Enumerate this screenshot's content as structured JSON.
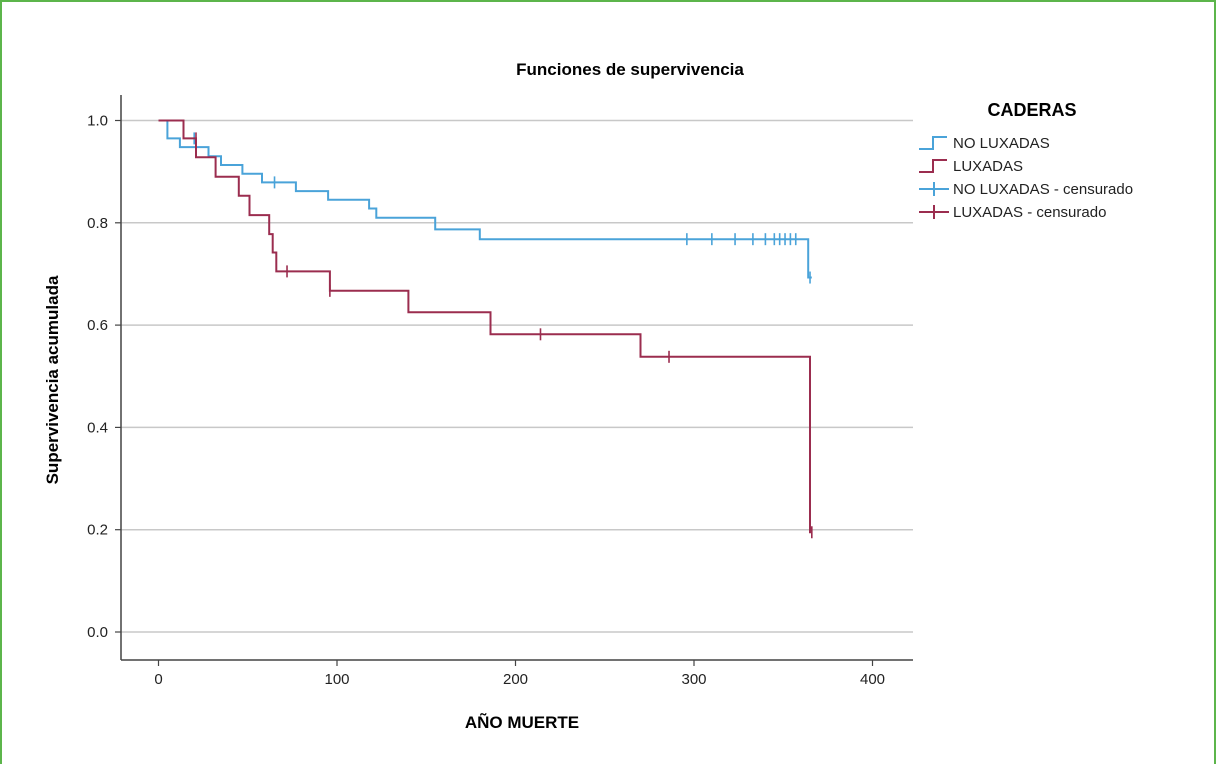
{
  "chart_data": {
    "type": "line",
    "title": "Funciones de supervivencia",
    "xlabel": "AÑO MUERTE",
    "ylabel": "Supervivencia acumulada",
    "xlim": [
      -20,
      420
    ],
    "ylim": [
      -0.05,
      1.05
    ],
    "xticks": [
      0,
      100,
      200,
      300,
      400
    ],
    "yticks": [
      0.0,
      0.2,
      0.4,
      0.6,
      0.8,
      1.0
    ],
    "xtick_labels": [
      "0",
      "100",
      "200",
      "300",
      "400"
    ],
    "ytick_labels": [
      "0.0",
      "0.2",
      "0.4",
      "0.6",
      "0.8",
      "1.0"
    ],
    "grid": "horizontal",
    "legend": {
      "title": "CADERAS",
      "position": "top-right",
      "entries": [
        "NO LUXADAS",
        "LUXADAS",
        "NO LUXADAS - censurado",
        "LUXADAS - censurado"
      ]
    },
    "series": [
      {
        "name": "NO LUXADAS",
        "color": "#4aa3d9",
        "step": [
          [
            0,
            1.0
          ],
          [
            5,
            0.965
          ],
          [
            12,
            0.948
          ],
          [
            20,
            0.948
          ],
          [
            28,
            0.93
          ],
          [
            35,
            0.913
          ],
          [
            47,
            0.896
          ],
          [
            58,
            0.879
          ],
          [
            68,
            0.879
          ],
          [
            77,
            0.862
          ],
          [
            95,
            0.845
          ],
          [
            107,
            0.845
          ],
          [
            118,
            0.828
          ],
          [
            122,
            0.81
          ],
          [
            152,
            0.81
          ],
          [
            155,
            0.787
          ],
          [
            172,
            0.787
          ],
          [
            180,
            0.768
          ],
          [
            362,
            0.768
          ],
          [
            364,
            0.693
          ],
          [
            366,
            0.693
          ]
        ],
        "censored": [
          [
            20,
            0.965
          ],
          [
            65,
            0.879
          ],
          [
            296,
            0.768
          ],
          [
            310,
            0.768
          ],
          [
            323,
            0.768
          ],
          [
            333,
            0.768
          ],
          [
            340,
            0.768
          ],
          [
            345,
            0.768
          ],
          [
            348,
            0.768
          ],
          [
            351,
            0.768
          ],
          [
            354,
            0.768
          ],
          [
            357,
            0.768
          ],
          [
            365,
            0.693
          ]
        ]
      },
      {
        "name": "LUXADAS",
        "color": "#9b2d4f",
        "step": [
          [
            0,
            1.0
          ],
          [
            12,
            1.0
          ],
          [
            14,
            0.965
          ],
          [
            20,
            0.965
          ],
          [
            21,
            0.928
          ],
          [
            32,
            0.89
          ],
          [
            45,
            0.853
          ],
          [
            51,
            0.815
          ],
          [
            62,
            0.778
          ],
          [
            64,
            0.742
          ],
          [
            66,
            0.705
          ],
          [
            95,
            0.705
          ],
          [
            96,
            0.667
          ],
          [
            139,
            0.667
          ],
          [
            140,
            0.625
          ],
          [
            184,
            0.625
          ],
          [
            186,
            0.582
          ],
          [
            268,
            0.582
          ],
          [
            270,
            0.538
          ],
          [
            365,
            0.538
          ],
          [
            365,
            0.195
          ],
          [
            366,
            0.195
          ]
        ],
        "censored": [
          [
            21,
            0.965
          ],
          [
            72,
            0.705
          ],
          [
            96,
            0.667
          ],
          [
            214,
            0.582
          ],
          [
            286,
            0.538
          ],
          [
            366,
            0.195
          ]
        ]
      }
    ]
  }
}
